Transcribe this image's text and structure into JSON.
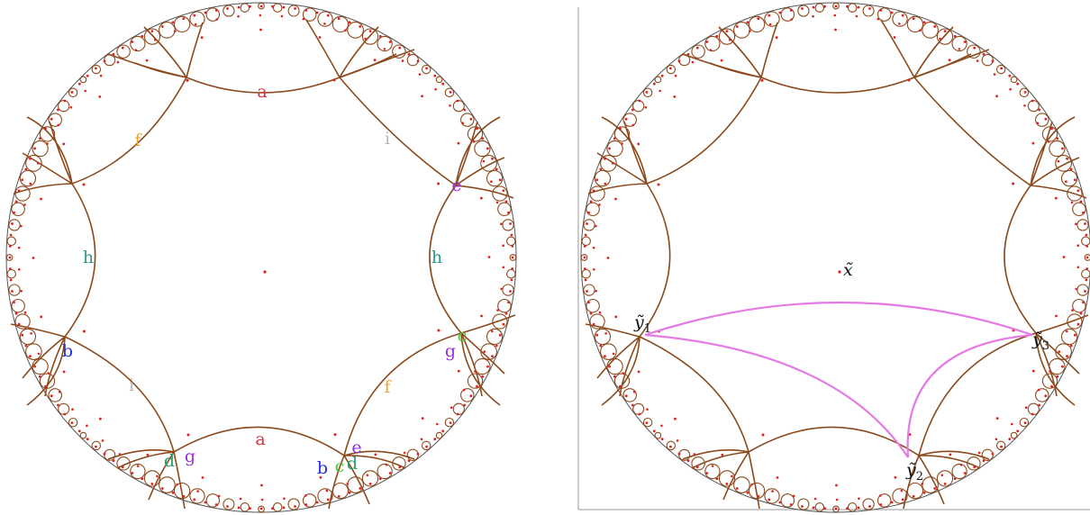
{
  "left_panel": {
    "edge_labels": [
      {
        "text": "a",
        "color": "#e0303a"
      },
      {
        "text": "f",
        "color": "#f0a030"
      },
      {
        "text": "i",
        "color": "#b8b8b8"
      },
      {
        "text": "e",
        "color": "#9a30d8"
      },
      {
        "text": "h",
        "color": "#2a9a8a"
      },
      {
        "text": "h",
        "color": "#2a9a8a"
      },
      {
        "text": "b",
        "color": "#2030e0"
      },
      {
        "text": "c",
        "color": "#40d040"
      },
      {
        "text": "g",
        "color": "#9a30d8"
      },
      {
        "text": "i",
        "color": "#b8b8b8"
      },
      {
        "text": "f",
        "color": "#f0a030"
      },
      {
        "text": "a",
        "color": "#e0303a"
      },
      {
        "text": "d",
        "color": "#2a9a6a"
      },
      {
        "text": "g",
        "color": "#9a30d8"
      },
      {
        "text": "e",
        "color": "#9a30d8"
      },
      {
        "text": "b",
        "color": "#2030e0"
      },
      {
        "text": "c",
        "color": "#40d040"
      },
      {
        "text": "d",
        "color": "#2a9a6a"
      }
    ]
  },
  "right_panel": {
    "center_label": {
      "base": "x̃"
    },
    "point_labels": [
      {
        "base": "ỹ",
        "sub": "1"
      },
      {
        "base": "ỹ",
        "sub": "2"
      },
      {
        "base": "ỹ",
        "sub": "3"
      }
    ]
  },
  "colors": {
    "tessellation": "#8b4a1c",
    "dots": "#e02020",
    "geodesic": "#e47ae4",
    "boundary": "#555555"
  }
}
